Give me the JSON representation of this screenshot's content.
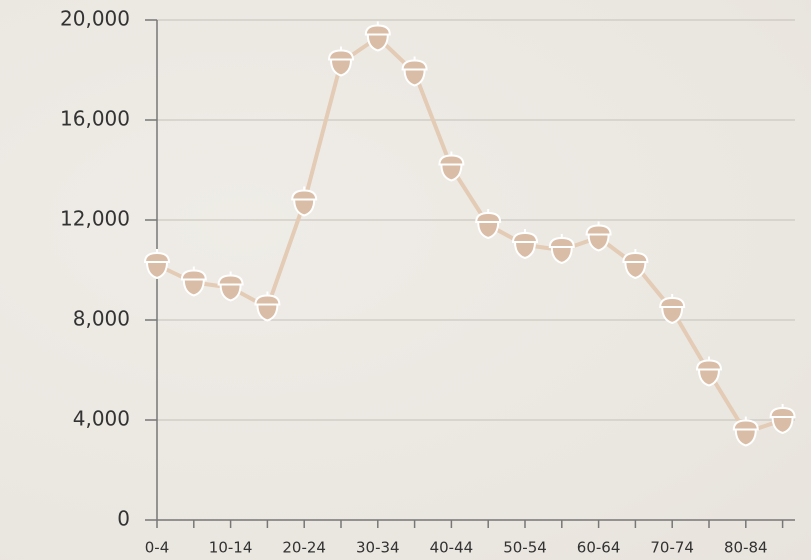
{
  "chart_data": {
    "type": "line",
    "categories": [
      "0-4",
      null,
      "10-14",
      null,
      "20-24",
      null,
      "30-34",
      null,
      "40-44",
      null,
      "50-54",
      null,
      "60-64",
      null,
      "70-74",
      null,
      "80-84",
      null
    ],
    "series": [
      {
        "color": "#e3cbb5",
        "marker_color": "#d9bda6",
        "values": [
          10200,
          9500,
          9300,
          8500,
          12700,
          18300,
          19300,
          17900,
          14100,
          11800,
          11000,
          10800,
          11300,
          10200,
          8400,
          5900,
          3500,
          4000
        ]
      }
    ],
    "ylim": [
      0,
      20000
    ],
    "yticks": [
      0,
      {
        "value": 4000,
        "label": "4,000"
      },
      {
        "value": 8000,
        "label": "8,000"
      },
      {
        "value": 12000,
        "label": "12,000"
      },
      {
        "value": 16000,
        "label": "16,000"
      },
      {
        "value": 20000,
        "label": "20,000"
      }
    ],
    "grid": true
  }
}
